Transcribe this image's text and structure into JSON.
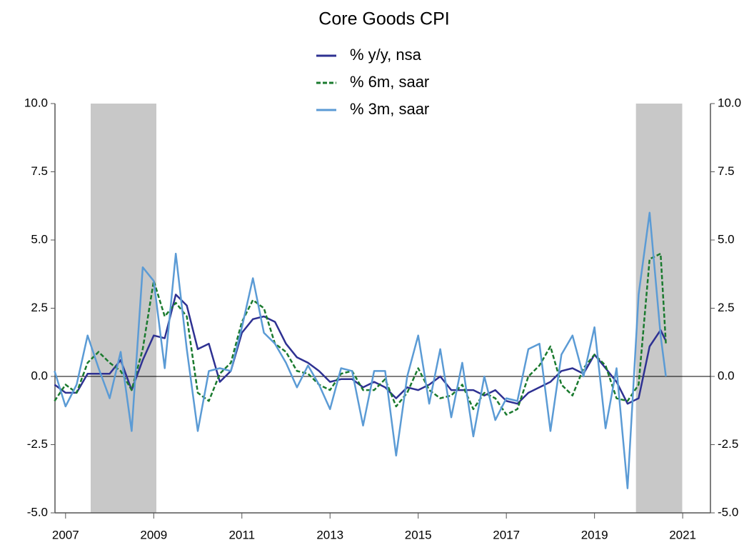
{
  "chart_data": {
    "type": "line",
    "title": "Core Goods CPI",
    "x": [
      2006.75,
      2007,
      2007.25,
      2007.5,
      2007.75,
      2008,
      2008.25,
      2008.5,
      2008.75,
      2009,
      2009.25,
      2009.5,
      2009.75,
      2010,
      2010.25,
      2010.5,
      2010.75,
      2011,
      2011.25,
      2011.5,
      2011.75,
      2012,
      2012.25,
      2012.5,
      2012.75,
      2013,
      2013.25,
      2013.5,
      2013.75,
      2014,
      2014.25,
      2014.5,
      2014.75,
      2015,
      2015.25,
      2015.5,
      2015.75,
      2016,
      2016.25,
      2016.5,
      2016.75,
      2017,
      2017.25,
      2017.5,
      2017.75,
      2018,
      2018.25,
      2018.5,
      2018.75,
      2019,
      2019.25,
      2019.5,
      2019.75,
      2020,
      2020.25,
      2020.5,
      2020.62
    ],
    "series": [
      {
        "name": "% y/y, nsa",
        "color": "#2e3192",
        "dash": false,
        "values": [
          -0.3,
          -0.6,
          -0.6,
          0.1,
          0.1,
          0.1,
          0.6,
          -0.5,
          0.6,
          1.5,
          1.4,
          3.0,
          2.6,
          1.0,
          1.2,
          -0.2,
          0.2,
          1.6,
          2.1,
          2.2,
          2.0,
          1.2,
          0.7,
          0.5,
          0.2,
          -0.2,
          -0.1,
          -0.1,
          -0.4,
          -0.2,
          -0.4,
          -0.8,
          -0.4,
          -0.5,
          -0.3,
          0.0,
          -0.5,
          -0.5,
          -0.5,
          -0.7,
          -0.5,
          -0.9,
          -1.0,
          -0.6,
          -0.4,
          -0.2,
          0.2,
          0.3,
          0.1,
          0.8,
          0.3,
          -0.2,
          -1.0,
          -0.8,
          1.1,
          1.7,
          1.3
        ]
      },
      {
        "name": "% 6m, saar",
        "color": "#1a7a2e",
        "dash": true,
        "values": [
          -0.9,
          -0.3,
          -0.6,
          0.5,
          0.9,
          0.5,
          0.2,
          -0.5,
          1.0,
          3.5,
          2.2,
          2.7,
          2.2,
          -0.6,
          -0.9,
          0.1,
          0.5,
          2.0,
          2.8,
          2.5,
          1.2,
          0.9,
          0.2,
          0.1,
          -0.3,
          -0.5,
          0.1,
          0.2,
          -0.5,
          -0.5,
          -0.1,
          -1.1,
          -0.6,
          0.3,
          -0.5,
          -0.8,
          -0.7,
          -0.3,
          -1.2,
          -0.6,
          -0.8,
          -1.4,
          -1.2,
          0.0,
          0.4,
          1.1,
          -0.3,
          -0.7,
          0.3,
          0.8,
          0.4,
          -0.8,
          -0.9,
          -0.3,
          4.3,
          4.5,
          1.2
        ]
      },
      {
        "name": "% 3m, saar",
        "color": "#5b9bd5",
        "dash": false,
        "values": [
          0.2,
          -1.1,
          -0.3,
          1.5,
          0.3,
          -0.8,
          0.9,
          -2.0,
          4.0,
          3.5,
          0.3,
          4.5,
          1.0,
          -2.0,
          0.2,
          0.3,
          0.2,
          1.8,
          3.6,
          1.6,
          1.2,
          0.5,
          -0.4,
          0.4,
          -0.3,
          -1.2,
          0.3,
          0.2,
          -1.8,
          0.2,
          0.2,
          -2.9,
          0.0,
          1.5,
          -1.0,
          1.0,
          -1.5,
          0.5,
          -2.2,
          0.0,
          -1.6,
          -0.8,
          -0.9,
          1.0,
          1.2,
          -2.0,
          0.8,
          1.5,
          0.0,
          1.8,
          -1.9,
          0.3,
          -4.1,
          3.0,
          6.0,
          1.5,
          0.0
        ]
      }
    ],
    "shaded_periods": [
      [
        2007.57,
        2009.06
      ],
      [
        2019.94,
        2020.99
      ]
    ],
    "xlim": [
      2006.76,
      2021.63
    ],
    "xticks": [
      2007,
      2009,
      2011,
      2013,
      2015,
      2017,
      2019,
      2021
    ],
    "ylim": [
      -5,
      10
    ],
    "yticks": [
      {
        "value": -5,
        "label": "-5.0"
      },
      {
        "value": -2.5,
        "label": "-2.5"
      },
      {
        "value": 0,
        "label": "0.0"
      },
      {
        "value": 2.5,
        "label": "2.5"
      },
      {
        "value": 5,
        "label": "5.0"
      },
      {
        "value": 7.5,
        "label": "7.5"
      },
      {
        "value": 10,
        "label": "10.0"
      }
    ],
    "y2lim": [
      -5,
      10
    ],
    "y2ticks": [
      {
        "value": -5,
        "label": "-5.0"
      },
      {
        "value": -2.5,
        "label": "-2.5"
      },
      {
        "value": 0,
        "label": "0.0"
      },
      {
        "value": 2.5,
        "label": "2.5"
      },
      {
        "value": 5,
        "label": "5.0"
      },
      {
        "value": 7.5,
        "label": "7.5"
      },
      {
        "value": 10,
        "label": "10.0"
      }
    ],
    "zero_line": true
  }
}
